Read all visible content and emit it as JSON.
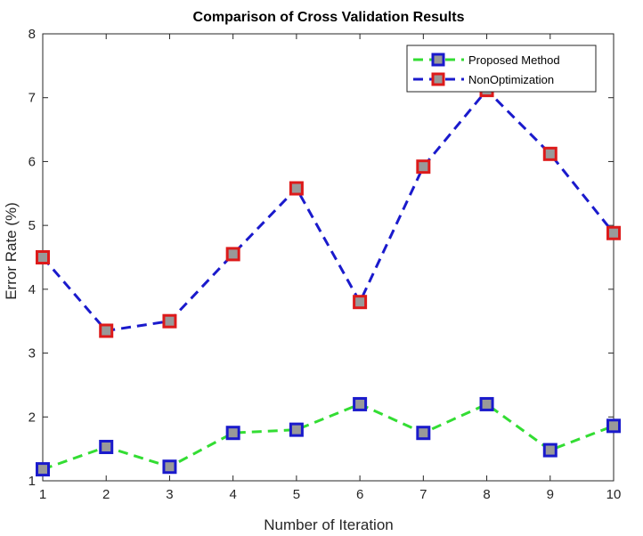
{
  "chart_data": {
    "type": "line",
    "title": "Comparison of Cross Validation Results",
    "xlabel": "Number of Iteration",
    "ylabel": "Error Rate (%)",
    "xlim": [
      1,
      10
    ],
    "ylim": [
      1,
      8
    ],
    "x": [
      1,
      2,
      3,
      4,
      5,
      6,
      7,
      8,
      9,
      10
    ],
    "xticks": [
      "1",
      "2",
      "3",
      "4",
      "5",
      "6",
      "7",
      "8",
      "9",
      "10"
    ],
    "yticks": [
      "1",
      "2",
      "3",
      "4",
      "5",
      "6",
      "7",
      "8"
    ],
    "grid": false,
    "legend_position": "top-right",
    "series": [
      {
        "name": "Proposed Method",
        "values": [
          1.18,
          1.53,
          1.22,
          1.75,
          1.8,
          2.2,
          1.75,
          2.2,
          1.48,
          1.86
        ],
        "line_color": "#33dd33",
        "marker_edge": "#1a1acc",
        "marker_face": "#999999",
        "line_style": "dashed",
        "marker": "square"
      },
      {
        "name": "NonOptimization",
        "values": [
          4.5,
          3.35,
          3.5,
          4.55,
          5.58,
          3.8,
          5.92,
          7.12,
          6.12,
          4.88
        ],
        "line_color": "#1a1acc",
        "marker_edge": "#dd1a1a",
        "marker_face": "#999999",
        "line_style": "dashed",
        "marker": "square"
      }
    ]
  }
}
